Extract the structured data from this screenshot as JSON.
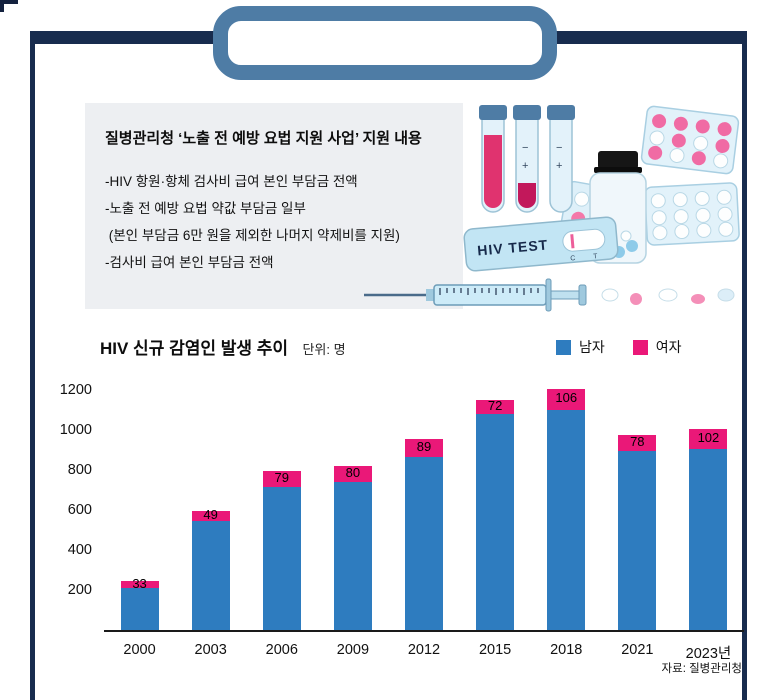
{
  "info_box": {
    "title": "질병관리청 ‘노출 전 예방 요법 지원 사업’ 지원 내용",
    "lines": [
      "-HIV 항원·항체 검사비 급여 본인 부담금 전액",
      "-노출 전 예방 요법 약값 부담금 일부",
      " (본인 부담금 6만 원을 제외한 나머지 약제비를 지원)",
      "-검사비 급여 본인 부담금 전액"
    ]
  },
  "illustration": {
    "test_kit_label": "HIV TEST",
    "control_marks": "C T",
    "tube_mark_minus": "−",
    "tube_mark_plus": "+"
  },
  "chart_data": {
    "type": "bar",
    "stacked": true,
    "title": "HIV 신규 감염인 발생 추이",
    "unit_label": "단위: 명",
    "categories": [
      "2000",
      "2003",
      "2006",
      "2009",
      "2012",
      "2015",
      "2018",
      "2021",
      "2023년"
    ],
    "series": [
      {
        "name": "남자",
        "color": "#2e7cbf",
        "values": [
          210,
          546,
          716,
          742,
          864,
          1080,
          1100,
          897,
          903
        ]
      },
      {
        "name": "여자",
        "color": "#ea1878",
        "values": [
          33,
          49,
          79,
          80,
          89,
          72,
          106,
          78,
          102
        ]
      }
    ],
    "totals": [
      243,
      595,
      795,
      822,
      953,
      1152,
      1206,
      975,
      1005
    ],
    "yticks": [
      200,
      400,
      600,
      800,
      1000,
      1200
    ],
    "ylim": [
      0,
      1250
    ],
    "grid": false,
    "legend_position": "top-right",
    "source": "자료: 질병관리청"
  }
}
